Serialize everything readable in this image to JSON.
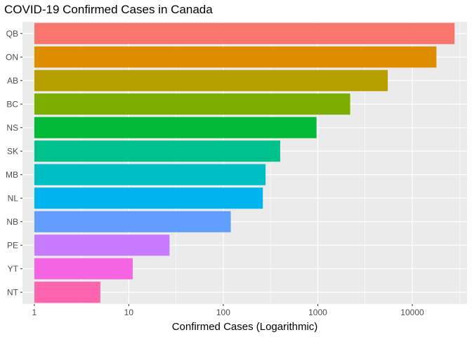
{
  "chart_data": {
    "type": "bar",
    "orientation": "horizontal",
    "title": "COVID-19 Confirmed Cases in Canada",
    "xlabel": "Confirmed Cases (Logarithmic)",
    "ylabel": "",
    "x_scale": "log10",
    "xlim": [
      0.75,
      38000
    ],
    "x_ticks": [
      1,
      10,
      100,
      1000,
      10000
    ],
    "x_tick_labels": [
      "1",
      "10",
      "100",
      "1000",
      "10000"
    ],
    "grid": true,
    "legend": "none",
    "categories": [
      "QB",
      "ON",
      "AB",
      "BC",
      "NS",
      "SK",
      "MB",
      "NL",
      "NB",
      "PE",
      "YT",
      "NT"
    ],
    "values": [
      28000,
      18000,
      5500,
      2200,
      970,
      400,
      280,
      262,
      120,
      27,
      11,
      5
    ],
    "colors": [
      "#F8766D",
      "#DE8C00",
      "#B79F00",
      "#7CAE00",
      "#00BA38",
      "#00C08B",
      "#00BFC4",
      "#00B4F0",
      "#619CFF",
      "#C77CFF",
      "#F564E3",
      "#FF64B0"
    ],
    "panel_background": "#EBEBEB",
    "grid_color": "#FFFFFF"
  }
}
